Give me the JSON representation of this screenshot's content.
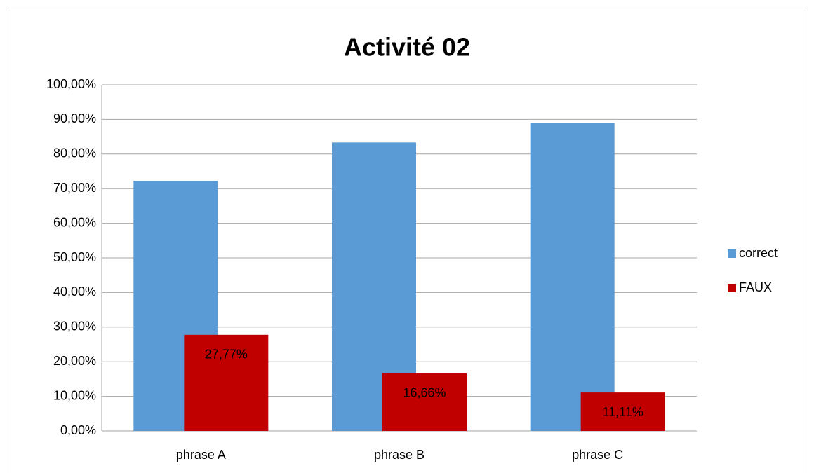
{
  "chart_data": {
    "type": "bar",
    "title": "Activité 02",
    "categories": [
      "phrase A",
      "phrase B",
      "phrase C"
    ],
    "series": [
      {
        "name": "correct",
        "color": "#5b9bd5",
        "values": [
          72.22,
          83.33,
          88.88
        ]
      },
      {
        "name": "FAUX",
        "color": "#c00000",
        "values": [
          27.77,
          16.66,
          11.11
        ],
        "value_labels": [
          "27,77%",
          "16,66%",
          "11,11%"
        ]
      }
    ],
    "ylim": [
      0,
      100
    ],
    "yticks": [
      {
        "value": 0,
        "label": "0,00%"
      },
      {
        "value": 10,
        "label": "10,00%"
      },
      {
        "value": 20,
        "label": "20,00%"
      },
      {
        "value": 30,
        "label": "30,00%"
      },
      {
        "value": 40,
        "label": "40,00%"
      },
      {
        "value": 50,
        "label": "50,00%"
      },
      {
        "value": 60,
        "label": "60,00%"
      },
      {
        "value": 70,
        "label": "70,00%"
      },
      {
        "value": 80,
        "label": "80,00%"
      },
      {
        "value": 90,
        "label": "90,00%"
      },
      {
        "value": 100,
        "label": "100,00%"
      }
    ],
    "grid": true,
    "legend": "right"
  }
}
